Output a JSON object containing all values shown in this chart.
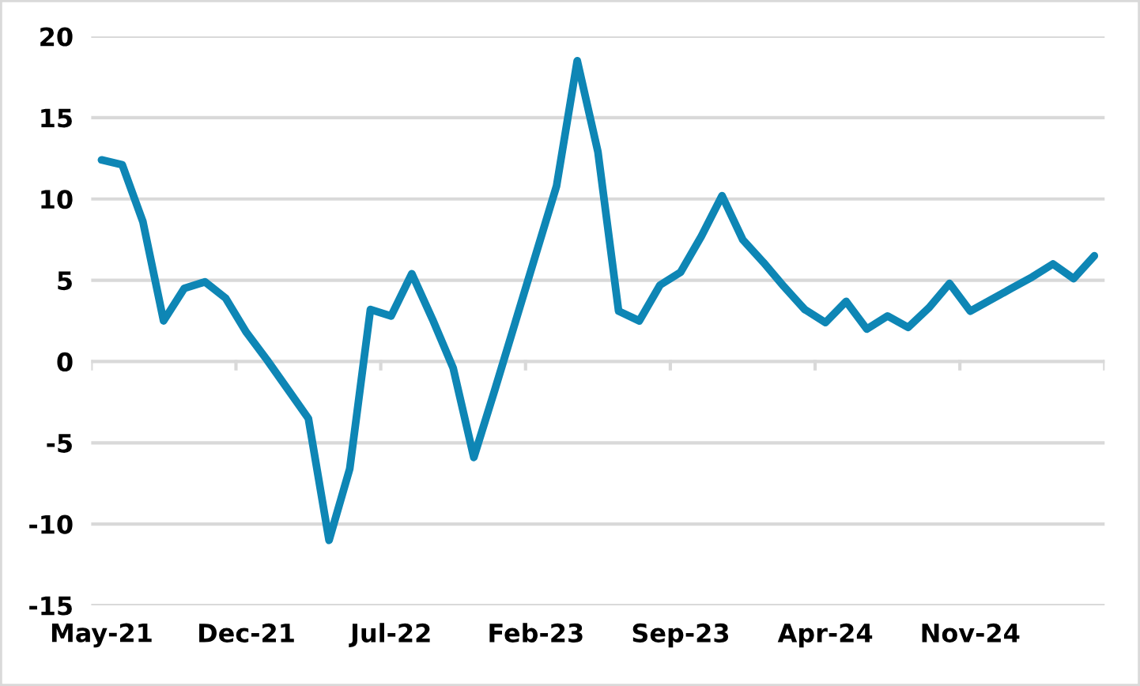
{
  "chart_data": {
    "type": "line",
    "categories": [
      "May-21",
      null,
      null,
      null,
      null,
      null,
      null,
      "Dec-21",
      null,
      null,
      null,
      null,
      null,
      null,
      "Jul-22",
      null,
      null,
      null,
      null,
      null,
      null,
      "Feb-23",
      null,
      null,
      null,
      null,
      null,
      null,
      "Sep-23",
      null,
      null,
      null,
      null,
      null,
      null,
      "Apr-24",
      null,
      null,
      null,
      null,
      null,
      null,
      "Nov-24",
      null,
      null,
      null,
      null,
      null,
      null
    ],
    "series": [
      {
        "color": "#0e86b5",
        "values": [
          12.4,
          12.1,
          8.6,
          2.5,
          4.5,
          4.9,
          3.9,
          1.8,
          0.1,
          -1.7,
          -3.5,
          -11.0,
          -6.6,
          3.2,
          2.8,
          5.4,
          2.6,
          -0.4,
          -5.9,
          -1.8,
          2.4,
          6.6,
          10.8,
          18.5,
          12.9,
          3.1,
          2.5,
          4.7,
          5.5,
          7.7,
          10.2,
          7.5,
          6.1,
          4.6,
          3.2,
          2.4,
          3.7,
          2.0,
          2.8,
          2.1,
          3.3,
          4.8,
          3.1,
          3.8,
          4.5,
          5.2,
          6.0,
          5.1,
          6.5
        ]
      }
    ],
    "ylim": [
      -15,
      20
    ],
    "yticks": [
      -15,
      -10,
      -5,
      0,
      5,
      10,
      15,
      20
    ],
    "grid": "y",
    "legend": false,
    "marker": "none",
    "line_style": "solid"
  }
}
